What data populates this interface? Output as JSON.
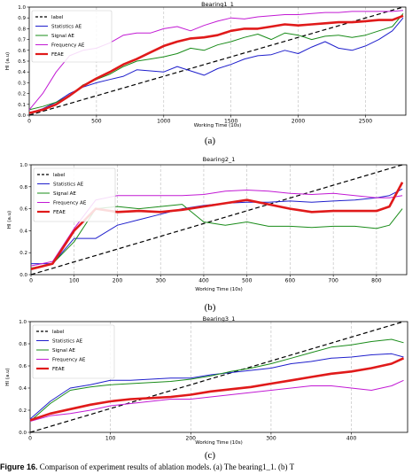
{
  "charts": [
    {
      "label": "(a)",
      "chart_data": {
        "type": "line",
        "title": "Bearing1_1",
        "xlabel": "Working Time (10s)",
        "ylabel": "HI (a.u)",
        "xlim": [
          0,
          2800
        ],
        "ylim": [
          0.0,
          1.0
        ],
        "xticks": [
          0,
          500,
          1000,
          1500,
          2000,
          2500
        ],
        "yticks": [
          0.0,
          0.1,
          0.2,
          0.3,
          0.4,
          0.5,
          0.6,
          0.7,
          0.8,
          0.9,
          1.0
        ],
        "grid": "dashed vertical",
        "legend": "top-left",
        "series": [
          {
            "name": "label",
            "color": "#000000",
            "width": 1.2,
            "dash": "5,3",
            "x": [
              0,
              2780
            ],
            "y": [
              0.0,
              1.0
            ]
          },
          {
            "name": "Statistics AE",
            "color": "#1f1fcc",
            "width": 1,
            "x": [
              0,
              100,
              200,
              300,
              400,
              500,
              600,
              700,
              800,
              900,
              1000,
              1100,
              1200,
              1300,
              1400,
              1500,
              1600,
              1700,
              1800,
              1900,
              2000,
              2100,
              2200,
              2300,
              2400,
              2500,
              2600,
              2700,
              2780
            ],
            "y": [
              0.02,
              0.06,
              0.12,
              0.2,
              0.26,
              0.3,
              0.33,
              0.36,
              0.42,
              0.41,
              0.4,
              0.45,
              0.41,
              0.37,
              0.43,
              0.47,
              0.52,
              0.55,
              0.56,
              0.6,
              0.57,
              0.63,
              0.68,
              0.62,
              0.6,
              0.64,
              0.7,
              0.78,
              0.9
            ]
          },
          {
            "name": "Signal AE",
            "color": "#1a8c1a",
            "width": 1,
            "x": [
              0,
              100,
              200,
              300,
              400,
              500,
              600,
              700,
              800,
              900,
              1000,
              1100,
              1200,
              1300,
              1400,
              1500,
              1600,
              1700,
              1800,
              1900,
              2000,
              2100,
              2200,
              2300,
              2400,
              2500,
              2600,
              2700,
              2780
            ],
            "y": [
              0.05,
              0.08,
              0.12,
              0.18,
              0.28,
              0.33,
              0.38,
              0.45,
              0.5,
              0.52,
              0.54,
              0.57,
              0.62,
              0.6,
              0.65,
              0.68,
              0.72,
              0.75,
              0.7,
              0.76,
              0.74,
              0.7,
              0.73,
              0.74,
              0.72,
              0.74,
              0.78,
              0.82,
              0.94
            ]
          },
          {
            "name": "Frequency AE",
            "color": "#c21ad4",
            "width": 1,
            "x": [
              0,
              100,
              200,
              300,
              400,
              500,
              600,
              700,
              800,
              900,
              1000,
              1100,
              1200,
              1300,
              1400,
              1500,
              1600,
              1700,
              1800,
              1900,
              2000,
              2100,
              2200,
              2300,
              2400,
              2500,
              2600,
              2700,
              2780
            ],
            "y": [
              0.05,
              0.2,
              0.4,
              0.55,
              0.6,
              0.62,
              0.67,
              0.74,
              0.76,
              0.76,
              0.8,
              0.82,
              0.78,
              0.83,
              0.87,
              0.9,
              0.89,
              0.91,
              0.92,
              0.93,
              0.93,
              0.94,
              0.95,
              0.95,
              0.96,
              0.96,
              0.96,
              0.96,
              0.97
            ]
          },
          {
            "name": "FEAE",
            "color": "#e01a1a",
            "width": 2.6,
            "x": [
              0,
              100,
              200,
              300,
              400,
              500,
              600,
              700,
              800,
              900,
              1000,
              1100,
              1200,
              1300,
              1400,
              1500,
              1600,
              1700,
              1800,
              1900,
              2000,
              2100,
              2200,
              2300,
              2400,
              2500,
              2600,
              2700,
              2780
            ],
            "y": [
              0.02,
              0.05,
              0.1,
              0.18,
              0.27,
              0.34,
              0.4,
              0.47,
              0.52,
              0.58,
              0.64,
              0.68,
              0.71,
              0.72,
              0.74,
              0.78,
              0.8,
              0.8,
              0.82,
              0.84,
              0.83,
              0.84,
              0.85,
              0.86,
              0.86,
              0.87,
              0.88,
              0.88,
              0.92
            ]
          }
        ]
      }
    },
    {
      "label": "(b)",
      "chart_data": {
        "type": "line",
        "title": "Bearing2_1",
        "xlabel": "Working Time (10s)",
        "ylabel": "HI (a.u)",
        "xlim": [
          0,
          870
        ],
        "ylim": [
          0.0,
          1.0
        ],
        "xticks": [
          0,
          100,
          200,
          300,
          400,
          500,
          600,
          700,
          800
        ],
        "yticks": [
          0.0,
          0.2,
          0.4,
          0.6,
          0.8,
          1.0
        ],
        "grid": "dashed vertical",
        "legend": "top-left",
        "series": [
          {
            "name": "label",
            "color": "#000000",
            "width": 1.2,
            "dash": "5,3",
            "x": [
              0,
              860
            ],
            "y": [
              0.0,
              1.0
            ]
          },
          {
            "name": "Statistics AE",
            "color": "#1f1fcc",
            "width": 1,
            "x": [
              0,
              50,
              100,
              150,
              200,
              250,
              300,
              350,
              400,
              450,
              500,
              550,
              600,
              650,
              700,
              750,
              800,
              830,
              860
            ],
            "y": [
              0.1,
              0.1,
              0.33,
              0.33,
              0.45,
              0.5,
              0.55,
              0.6,
              0.63,
              0.65,
              0.66,
              0.66,
              0.67,
              0.66,
              0.67,
              0.68,
              0.7,
              0.72,
              0.78
            ]
          },
          {
            "name": "Signal AE",
            "color": "#1a8c1a",
            "width": 1,
            "x": [
              0,
              50,
              100,
              150,
              200,
              250,
              300,
              350,
              400,
              450,
              500,
              550,
              600,
              650,
              700,
              750,
              800,
              830,
              860
            ],
            "y": [
              0.06,
              0.1,
              0.3,
              0.6,
              0.62,
              0.6,
              0.62,
              0.64,
              0.48,
              0.45,
              0.48,
              0.44,
              0.44,
              0.43,
              0.44,
              0.44,
              0.42,
              0.45,
              0.6
            ]
          },
          {
            "name": "Frequency AE",
            "color": "#c21ad4",
            "width": 1,
            "x": [
              0,
              50,
              100,
              150,
              200,
              250,
              300,
              350,
              400,
              450,
              500,
              550,
              600,
              650,
              700,
              750,
              800,
              830,
              860
            ],
            "y": [
              0.08,
              0.12,
              0.42,
              0.68,
              0.72,
              0.72,
              0.72,
              0.72,
              0.73,
              0.76,
              0.77,
              0.76,
              0.74,
              0.73,
              0.74,
              0.72,
              0.7,
              0.7,
              0.72
            ]
          },
          {
            "name": "FEAE",
            "color": "#e01a1a",
            "width": 2.6,
            "x": [
              0,
              50,
              100,
              150,
              200,
              250,
              300,
              350,
              400,
              450,
              500,
              550,
              600,
              650,
              700,
              750,
              800,
              830,
              860
            ],
            "y": [
              0.05,
              0.1,
              0.4,
              0.6,
              0.57,
              0.58,
              0.57,
              0.59,
              0.62,
              0.65,
              0.68,
              0.64,
              0.6,
              0.57,
              0.58,
              0.58,
              0.58,
              0.62,
              0.84
            ]
          }
        ]
      }
    },
    {
      "label": "(c)",
      "chart_data": {
        "type": "line",
        "title": "Bearing3_1",
        "xlabel": "Working Time (10s)",
        "ylabel": "HI (a.u)",
        "xlim": [
          0,
          470
        ],
        "ylim": [
          0.0,
          1.0
        ],
        "xticks": [
          0,
          100,
          200,
          300,
          400
        ],
        "yticks": [
          0.0,
          0.2,
          0.4,
          0.6,
          0.8,
          1.0
        ],
        "grid": "dashed vertical",
        "legend": "top-left",
        "series": [
          {
            "name": "label",
            "color": "#000000",
            "width": 1.2,
            "dash": "5,3",
            "x": [
              0,
              465
            ],
            "y": [
              0.0,
              1.0
            ]
          },
          {
            "name": "Statistics AE",
            "color": "#1f1fcc",
            "width": 1,
            "x": [
              0,
              25,
              50,
              75,
              100,
              125,
              150,
              175,
              200,
              225,
              250,
              275,
              300,
              325,
              350,
              375,
              400,
              425,
              450,
              465
            ],
            "y": [
              0.12,
              0.28,
              0.4,
              0.43,
              0.47,
              0.47,
              0.48,
              0.49,
              0.49,
              0.52,
              0.54,
              0.56,
              0.58,
              0.62,
              0.64,
              0.67,
              0.68,
              0.7,
              0.71,
              0.68
            ]
          },
          {
            "name": "Signal AE",
            "color": "#1a8c1a",
            "width": 1,
            "x": [
              0,
              25,
              50,
              75,
              100,
              125,
              150,
              175,
              200,
              225,
              250,
              275,
              300,
              325,
              350,
              375,
              400,
              425,
              450,
              465
            ],
            "y": [
              0.1,
              0.26,
              0.38,
              0.41,
              0.43,
              0.44,
              0.45,
              0.46,
              0.48,
              0.51,
              0.55,
              0.58,
              0.62,
              0.67,
              0.72,
              0.77,
              0.79,
              0.82,
              0.84,
              0.81
            ]
          },
          {
            "name": "Frequency AE",
            "color": "#c21ad4",
            "width": 1,
            "x": [
              0,
              25,
              50,
              75,
              100,
              125,
              150,
              175,
              200,
              225,
              250,
              275,
              300,
              325,
              350,
              375,
              400,
              425,
              450,
              465
            ],
            "y": [
              0.1,
              0.15,
              0.17,
              0.2,
              0.24,
              0.26,
              0.28,
              0.3,
              0.3,
              0.32,
              0.34,
              0.36,
              0.38,
              0.4,
              0.42,
              0.42,
              0.4,
              0.38,
              0.42,
              0.47
            ]
          },
          {
            "name": "FEAE",
            "color": "#e01a1a",
            "width": 2.6,
            "x": [
              0,
              25,
              50,
              75,
              100,
              125,
              150,
              175,
              200,
              225,
              250,
              275,
              300,
              325,
              350,
              375,
              400,
              425,
              450,
              465
            ],
            "y": [
              0.11,
              0.17,
              0.21,
              0.25,
              0.28,
              0.3,
              0.31,
              0.32,
              0.34,
              0.37,
              0.39,
              0.41,
              0.44,
              0.47,
              0.5,
              0.53,
              0.55,
              0.58,
              0.62,
              0.67
            ]
          }
        ]
      }
    }
  ],
  "caption": {
    "bold": "Figure 16.",
    "text": "Comparison of experiment results of ablation models. (a) The bearing1_1. (b) T"
  }
}
